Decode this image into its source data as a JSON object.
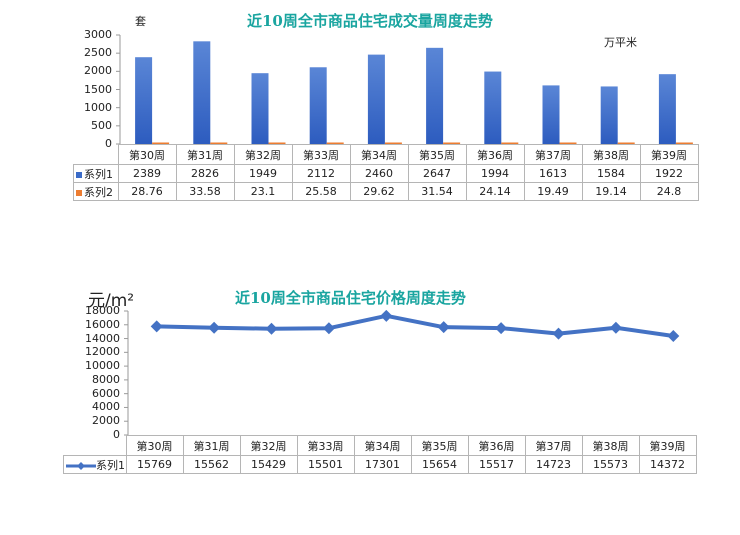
{
  "chart_data": [
    {
      "type": "bar",
      "title": "近10周全市商品住宅成交量周度走势",
      "ylabel": "套",
      "y2label": "万平米",
      "ylim": [
        0,
        3000
      ],
      "yticks": [
        "3000",
        "2500",
        "2000",
        "1500",
        "1000",
        "500",
        "0"
      ],
      "categories": [
        "第30周",
        "第31周",
        "第32周",
        "第33周",
        "第34周",
        "第35周",
        "第36周",
        "第37周",
        "第38周",
        "第39周"
      ],
      "series": [
        {
          "name": "系列1",
          "color": "#3a6bc8",
          "values": [
            2389,
            2826,
            1949,
            2112,
            2460,
            2647,
            1994,
            1613,
            1584,
            1922
          ],
          "labels": [
            "2389",
            "2826",
            "1949",
            "2112",
            "2460",
            "2647",
            "1994",
            "1613",
            "1584",
            "1922"
          ]
        },
        {
          "name": "系列2",
          "color": "#ed7d31",
          "values": [
            28.76,
            33.58,
            23.1,
            25.58,
            29.62,
            31.54,
            24.14,
            19.49,
            19.14,
            24.8
          ],
          "labels": [
            "28.76",
            "33.58",
            "23.1",
            "25.58",
            "29.62",
            "31.54",
            "24.14",
            "19.49",
            "19.14",
            "24.8"
          ]
        }
      ],
      "grid": false,
      "legend_position": "data-table"
    },
    {
      "type": "line",
      "title": "近10周全市商品住宅价格周度走势",
      "ylabel": "元/m²",
      "ylim": [
        0,
        18000
      ],
      "yticks": [
        "18000",
        "16000",
        "14000",
        "12000",
        "10000",
        "8000",
        "6000",
        "4000",
        "2000",
        "0"
      ],
      "categories": [
        "第30周",
        "第31周",
        "第32周",
        "第33周",
        "第34周",
        "第35周",
        "第36周",
        "第37周",
        "第38周",
        "第39周"
      ],
      "series": [
        {
          "name": "系列1",
          "color": "#4472c4",
          "values": [
            15769,
            15562,
            15429,
            15501,
            17301,
            15654,
            15517,
            14723,
            15573,
            14372
          ],
          "labels": [
            "15769",
            "15562",
            "15429",
            "15501",
            "17301",
            "15654",
            "15517",
            "14723",
            "15573",
            "14372"
          ]
        }
      ],
      "grid": false,
      "legend_position": "data-table"
    }
  ]
}
